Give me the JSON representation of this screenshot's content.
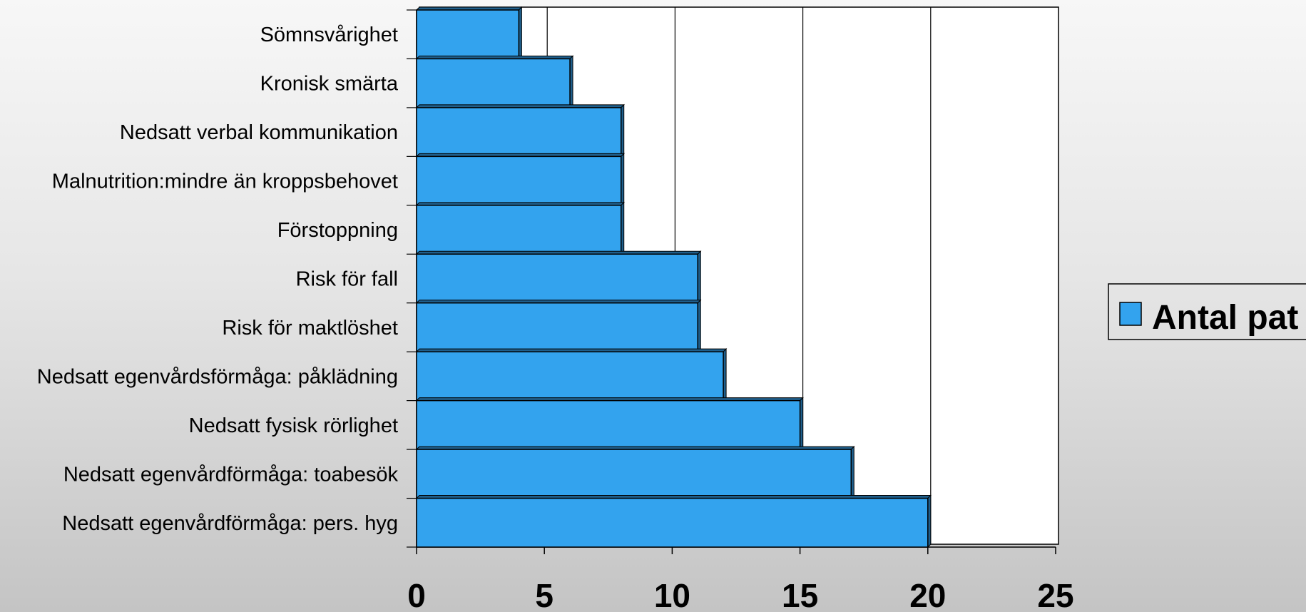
{
  "chart_data": {
    "type": "bar",
    "orientation": "horizontal",
    "categories": [
      "Sömnsvårighet",
      "Kronisk smärta",
      "Nedsatt verbal kommunikation",
      "Malnutrition:mindre än kroppsbehovet",
      "Förstoppning",
      "Risk för fall",
      "Risk för maktlöshet",
      "Nedsatt egenvårdsförmåga: påklädning",
      "Nedsatt fysisk rörlighet",
      "Nedsatt egenvårdförmåga: toabesök",
      "Nedsatt egenvårdförmåga: pers. hyg"
    ],
    "series": [
      {
        "name": "Antal pat",
        "values": [
          4,
          6,
          8,
          8,
          8,
          11,
          11,
          12,
          15,
          17,
          20
        ]
      }
    ],
    "x_ticks": [
      "0",
      "5",
      "10",
      "15",
      "20",
      "25"
    ],
    "xlim": [
      0,
      25
    ],
    "grid": "vertical",
    "legend_position": "right",
    "colors": {
      "bar": "#33a3ee",
      "bar_shadow": "#1f5f8c",
      "outline": "#000000"
    }
  }
}
